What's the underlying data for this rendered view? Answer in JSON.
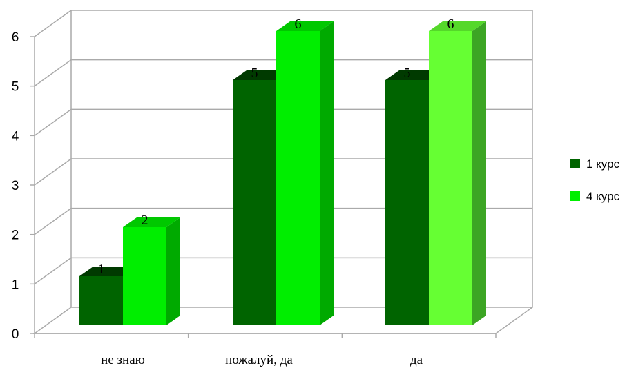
{
  "chart_data": {
    "type": "bar",
    "categories": [
      "не знаю",
      "пожалуй, да",
      "да"
    ],
    "series": [
      {
        "name": "1 курс",
        "values": [
          1,
          5,
          5
        ]
      },
      {
        "name": "4 курс",
        "values": [
          2,
          6,
          6
        ]
      }
    ],
    "ylim": [
      0,
      6
    ],
    "yticks": [
      "0",
      "1",
      "2",
      "3",
      "4",
      "5",
      "6"
    ],
    "grid": true,
    "legend_position": "right",
    "style": "3d-clustered-column",
    "colors": {
      "series_1_front": "#006400",
      "series_1_side": "#004d00",
      "series_1_top": "#003a00",
      "series_2_front": "#00ee00",
      "series_2_side": "#00aa00",
      "series_2_top": "#00c800",
      "series_2_last_front": "#66ff33",
      "series_2_last_side": "#3ca524",
      "series_2_last_top": "#55d82a",
      "grid": "#aaaaaa"
    }
  }
}
